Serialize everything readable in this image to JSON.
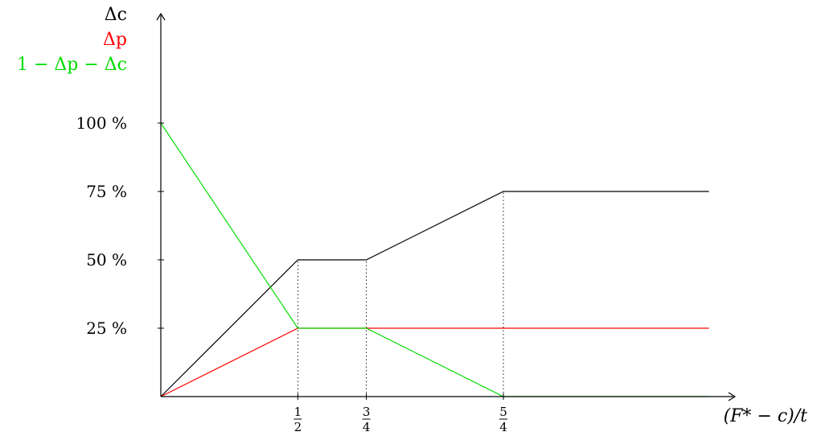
{
  "chart_data": {
    "type": "line",
    "xlabel": "(F* − c)/t",
    "x_ticks": [
      {
        "x": 0.5,
        "num": "1",
        "den": "2"
      },
      {
        "x": 0.75,
        "num": "3",
        "den": "4"
      },
      {
        "x": 1.25,
        "num": "5",
        "den": "4"
      }
    ],
    "y_ticks": [
      {
        "y": 25,
        "label": "25 %"
      },
      {
        "y": 50,
        "label": "50 %"
      },
      {
        "y": 75,
        "label": "75 %"
      },
      {
        "y": 100,
        "label": "100 %"
      }
    ],
    "xlim": [
      0,
      2
    ],
    "ylim": [
      0,
      100
    ],
    "series": [
      {
        "name": "Δc",
        "color": "#000000",
        "x": [
          0,
          0.5,
          0.75,
          1.25,
          2
        ],
        "y": [
          0,
          50,
          50,
          75,
          75
        ]
      },
      {
        "name": "Δp",
        "color": "#ff0000",
        "x": [
          0,
          0.5,
          2
        ],
        "y": [
          0,
          25,
          25
        ]
      },
      {
        "name": "1 − Δp − Δc",
        "color": "#00dd00",
        "x": [
          0,
          0.5,
          0.75,
          1.25,
          2
        ],
        "y": [
          100,
          25,
          25,
          0,
          0
        ]
      }
    ],
    "guide_lines": [
      {
        "x": 0.5,
        "y": 50
      },
      {
        "x": 0.75,
        "y": 50
      },
      {
        "x": 1.25,
        "y": 75
      }
    ]
  }
}
